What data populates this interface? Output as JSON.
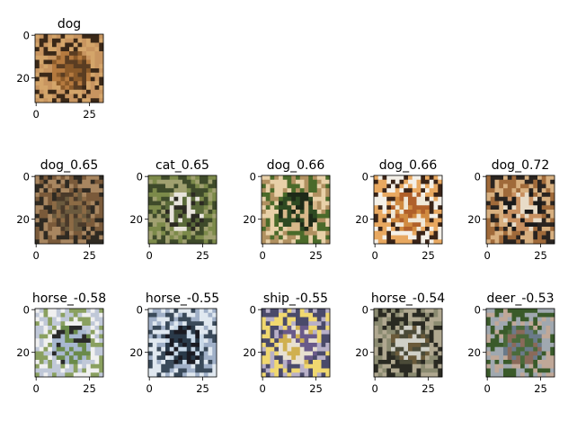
{
  "figure": {
    "query": {
      "title": "dog",
      "x_ticks": [
        "0",
        "25"
      ],
      "y_ticks": [
        "0",
        "20"
      ],
      "palette": [
        "#8a5a2a",
        "#b57a3f",
        "#5a3d22",
        "#d4a56a",
        "#3a2818",
        "#c89560"
      ]
    },
    "rows": [
      [
        {
          "title": "dog_0.65",
          "x_ticks": [
            "0",
            "25"
          ],
          "y_ticks": [
            "0",
            "20"
          ],
          "palette": [
            "#6b5a3e",
            "#8c6b45",
            "#4a3a2a",
            "#a88660",
            "#2f2a22",
            "#7a5a3a"
          ]
        },
        {
          "title": "cat_0.65",
          "x_ticks": [
            "0",
            "25"
          ],
          "y_ticks": [
            "0",
            "20"
          ],
          "palette": [
            "#5a6a3a",
            "#2c2a22",
            "#e8e4dc",
            "#7c8a4a",
            "#3e4a2a",
            "#a0a070"
          ]
        },
        {
          "title": "dog_0.66",
          "x_ticks": [
            "0",
            "25"
          ],
          "y_ticks": [
            "0",
            "20"
          ],
          "palette": [
            "#2e4a22",
            "#d8b88a",
            "#1e2a18",
            "#e8d0a8",
            "#4a6a2a",
            "#b09060"
          ]
        },
        {
          "title": "dog_0.66",
          "x_ticks": [
            "0",
            "25"
          ],
          "y_ticks": [
            "0",
            "20"
          ],
          "palette": [
            "#d08a40",
            "#f0e8d8",
            "#b0602a",
            "#e8a860",
            "#3a2418",
            "#f4f0e8"
          ]
        },
        {
          "title": "dog_0.72",
          "x_ticks": [
            "0",
            "25"
          ],
          "y_ticks": [
            "0",
            "20"
          ],
          "palette": [
            "#1a1a1a",
            "#c89060",
            "#e8dcc8",
            "#a06a3a",
            "#d8b080",
            "#2a2420"
          ]
        }
      ],
      [
        {
          "title": "horse_-0.58",
          "x_ticks": [
            "0",
            "25"
          ],
          "y_ticks": [
            "0",
            "20"
          ],
          "palette": [
            "#a8b8d0",
            "#6a8a4a",
            "#2a2a2a",
            "#f0f0f0",
            "#8aa060",
            "#c0c8d8"
          ]
        },
        {
          "title": "horse_-0.55",
          "x_ticks": [
            "0",
            "25"
          ],
          "y_ticks": [
            "0",
            "20"
          ],
          "palette": [
            "#c8d8e8",
            "#1a1a22",
            "#2a3a4a",
            "#e0e8f0",
            "#3a4a5a",
            "#a0b0c8"
          ]
        },
        {
          "title": "ship_-0.55",
          "x_ticks": [
            "0",
            "25"
          ],
          "y_ticks": [
            "0",
            "20"
          ],
          "palette": [
            "#6a5a8a",
            "#e8e0d0",
            "#d0b050",
            "#4a4a6a",
            "#b8b0c8",
            "#f0d870"
          ]
        },
        {
          "title": "horse_-0.54",
          "x_ticks": [
            "0",
            "25"
          ],
          "y_ticks": [
            "0",
            "20"
          ],
          "palette": [
            "#4a4a38",
            "#d0d0c8",
            "#6a5a3a",
            "#8a8a70",
            "#2a2a22",
            "#b0a890"
          ]
        },
        {
          "title": "deer_-0.53",
          "x_ticks": [
            "0",
            "25"
          ],
          "y_ticks": [
            "0",
            "20"
          ],
          "palette": [
            "#6a7a8a",
            "#4a6a3a",
            "#8a6a5a",
            "#a0a8b0",
            "#3a5a2a",
            "#c0a898"
          ]
        }
      ]
    ]
  }
}
